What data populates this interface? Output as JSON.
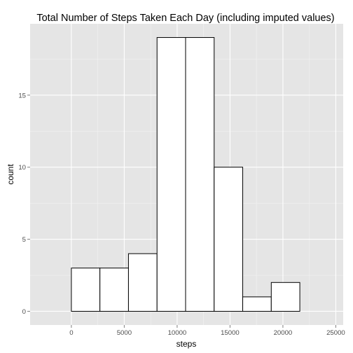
{
  "chart_data": {
    "type": "bar",
    "title": "Total Number of Steps Taken Each Day (including imputed values)",
    "xlabel": "steps",
    "ylabel": "count",
    "x_ticks": [
      0,
      5000,
      10000,
      15000,
      20000,
      25000
    ],
    "x_tick_labels": [
      "0",
      "5000",
      "10000",
      "15000",
      "20000",
      "25000"
    ],
    "y_ticks": [
      0,
      5,
      10,
      15
    ],
    "y_tick_labels": [
      "0",
      "5",
      "10",
      "15"
    ],
    "xlim": [
      -3900,
      25700
    ],
    "ylim": [
      -0.95,
      19.95
    ],
    "grid": true,
    "colors": {
      "panel_background": "#e5e5e5",
      "grid_major": "#ffffff",
      "grid_minor": "#f2f2f2",
      "bar_fill": "#ffffff",
      "bar_outline": "#000000",
      "tick_label": "#4d4d4d"
    },
    "bins": [
      {
        "x0": -2700,
        "x1": 0,
        "count": 0
      },
      {
        "x0": 0,
        "x1": 2700,
        "count": 3
      },
      {
        "x0": 2700,
        "x1": 5400,
        "count": 3
      },
      {
        "x0": 5400,
        "x1": 8100,
        "count": 4
      },
      {
        "x0": 8100,
        "x1": 10800,
        "count": 19
      },
      {
        "x0": 10800,
        "x1": 13500,
        "count": 19
      },
      {
        "x0": 13500,
        "x1": 16200,
        "count": 10
      },
      {
        "x0": 16200,
        "x1": 18900,
        "count": 1
      },
      {
        "x0": 18900,
        "x1": 21600,
        "count": 2
      },
      {
        "x0": 21600,
        "x1": 24300,
        "count": 0
      }
    ]
  }
}
